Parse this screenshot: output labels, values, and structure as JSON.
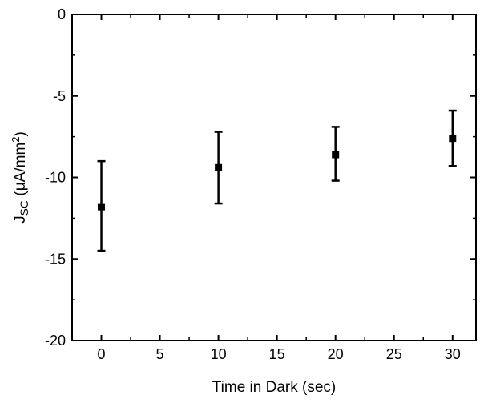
{
  "chart_data": {
    "type": "scatter",
    "title": "",
    "xlabel": "Time in Dark (sec)",
    "ylabel": {
      "main": "J",
      "subscript": "SC",
      "unit_open": " (μA/mm",
      "unit_sup": "2",
      "unit_close": ")"
    },
    "xlim": [
      -2.5,
      32
    ],
    "ylim": [
      -20,
      0
    ],
    "xticks": [
      0,
      5,
      10,
      15,
      20,
      25,
      30
    ],
    "yticks": [
      0,
      -5,
      -10,
      -15,
      -20
    ],
    "grid": false,
    "legend": "none",
    "series": [
      {
        "marker": "square",
        "color": "#000000",
        "x": [
          0,
          10,
          20,
          30
        ],
        "y": [
          -11.8,
          -9.4,
          -8.6,
          -7.6
        ],
        "err_low": [
          -14.5,
          -11.6,
          -10.2,
          -9.3
        ],
        "err_high": [
          -9.0,
          -7.2,
          -6.9,
          -5.9
        ]
      }
    ]
  }
}
